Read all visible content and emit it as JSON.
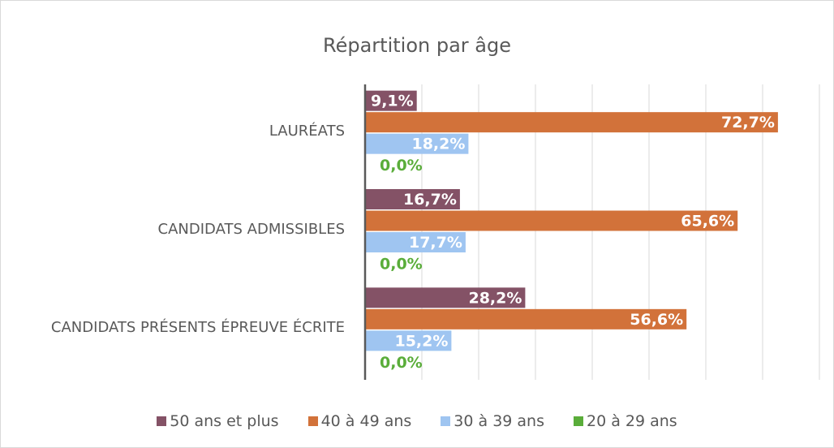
{
  "chart_data": {
    "type": "bar",
    "orientation": "horizontal",
    "title": "Répartition par âge",
    "categories": [
      "LAURÉATS",
      "CANDIDATS ADMISSIBLES",
      "CANDIDATS PRÉSENTS ÉPREUVE ÉCRITE"
    ],
    "series": [
      {
        "name": "50 ans et plus",
        "color": "#845266",
        "values": [
          9.1,
          16.7,
          28.2
        ],
        "value_labels": [
          "9,1%",
          "16,7%",
          "28,2%"
        ],
        "label_color": "#ffffff"
      },
      {
        "name": "40 à 49 ans",
        "color": "#d2723a",
        "values": [
          72.7,
          65.6,
          56.6
        ],
        "value_labels": [
          "72,7%",
          "65,6%",
          "56,6%"
        ],
        "label_color": "#ffffff"
      },
      {
        "name": "30 à 39 ans",
        "color": "#9fc5f1",
        "values": [
          18.2,
          17.7,
          15.2
        ],
        "value_labels": [
          "18,2%",
          "17,7%",
          "15,2%"
        ],
        "label_color": "#ffffff"
      },
      {
        "name": "20 à 29 ans",
        "color": "#5aad3a",
        "values": [
          0,
          0,
          0
        ],
        "value_labels": [
          "0,0%",
          "0,0%",
          "0,0%"
        ],
        "label_color": "#5aad3a"
      }
    ],
    "xlim": [
      0,
      80
    ],
    "xticks": [
      0,
      10,
      20,
      30,
      40,
      50,
      60,
      70,
      80
    ],
    "grid": true,
    "legend": "bottom"
  }
}
